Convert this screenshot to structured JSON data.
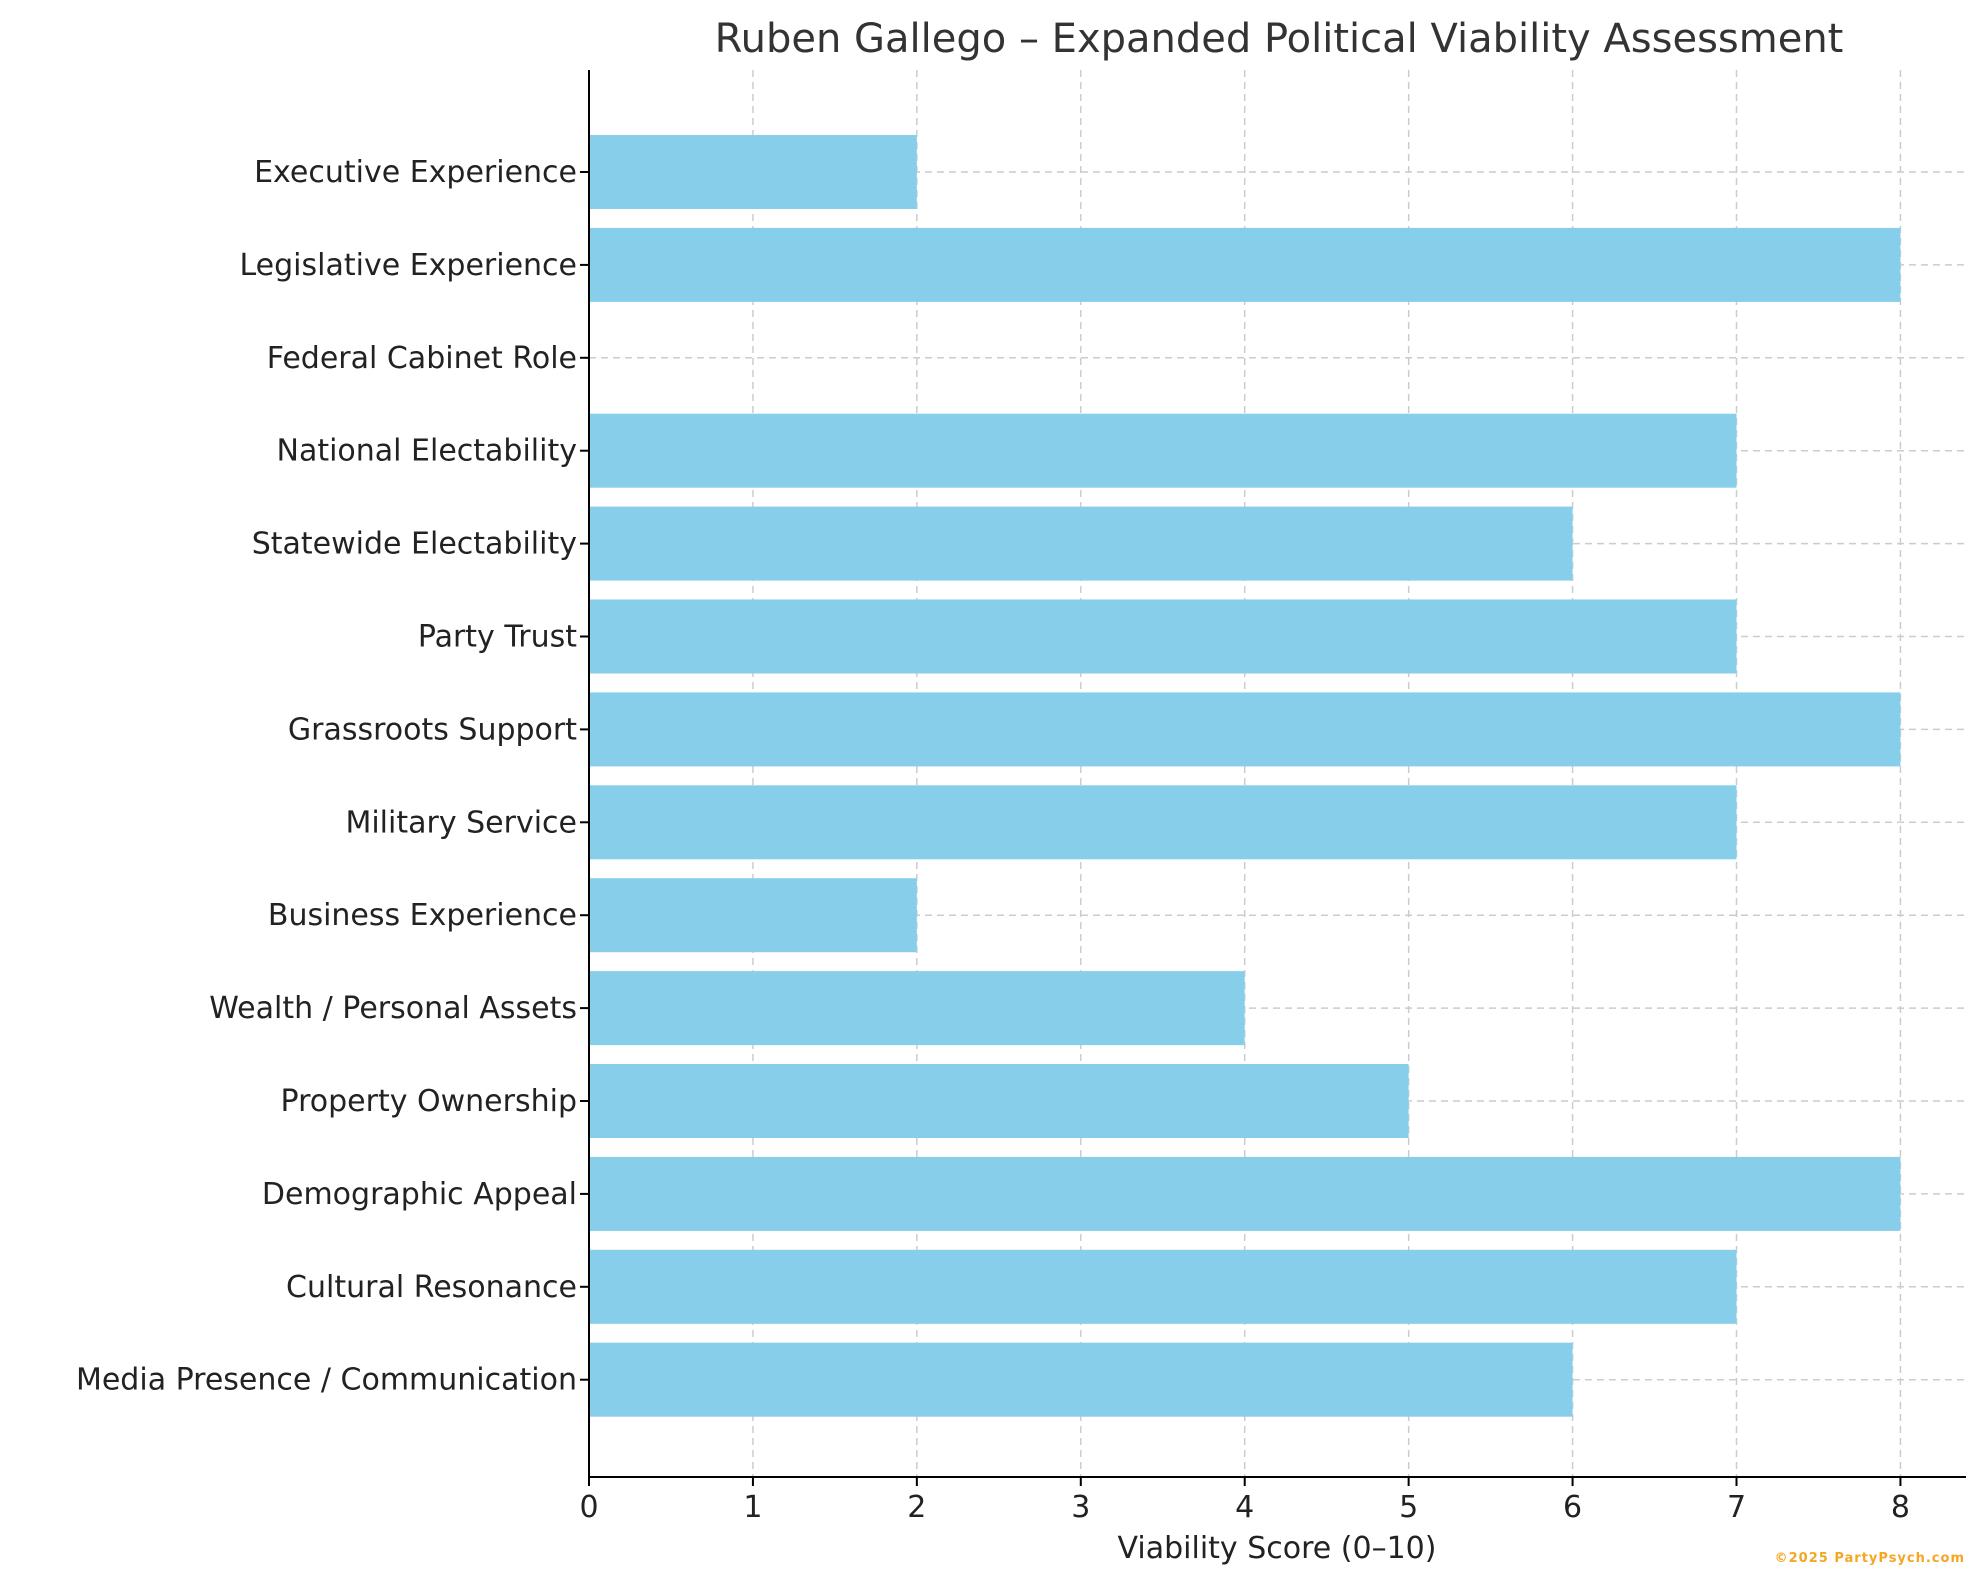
{
  "chart_data": {
    "type": "bar",
    "orientation": "horizontal",
    "title": "Ruben Gallego – Expanded Political Viability Assessment",
    "xlabel": "Viability Score (0–10)",
    "ylabel": "",
    "categories": [
      "Executive Experience",
      "Legislative Experience",
      "Federal Cabinet Role",
      "National Electability",
      "Statewide Electability",
      "Party Trust",
      "Grassroots Support",
      "Military Service",
      "Business Experience",
      "Wealth / Personal Assets",
      "Property Ownership",
      "Demographic Appeal",
      "Cultural Resonance",
      "Media Presence / Communication"
    ],
    "values": [
      2,
      8,
      0,
      7,
      6,
      7,
      8,
      7,
      2,
      4,
      5,
      8,
      7,
      6
    ],
    "xlim": [
      0,
      8.4
    ],
    "xticks": [
      0,
      1,
      2,
      3,
      4,
      5,
      6,
      7,
      8
    ],
    "grid": true,
    "legend": "none",
    "bar_color": "#87CEEB"
  },
  "watermark": {
    "text": "©2025 PartyPsych.com",
    "color": "#F5A623"
  }
}
